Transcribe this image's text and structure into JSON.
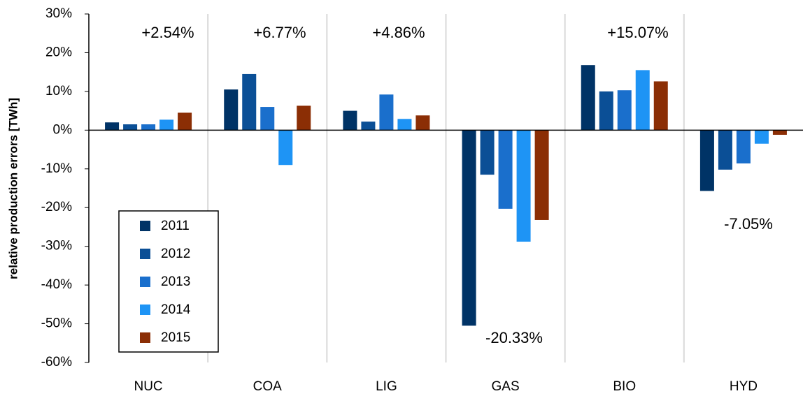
{
  "chart_data": {
    "type": "bar",
    "ylabel": "relative production errors [TWh]",
    "categories": [
      "NUC",
      "COA",
      "LIG",
      "GAS",
      "BIO",
      "HYD"
    ],
    "series": [
      {
        "name": "2011",
        "color": "#003366",
        "values": [
          2.0,
          10.5,
          5.0,
          -50.5,
          16.8,
          -15.7
        ]
      },
      {
        "name": "2012",
        "color": "#0b4f96",
        "values": [
          1.5,
          14.5,
          2.2,
          -11.5,
          10.0,
          -10.2
        ]
      },
      {
        "name": "2013",
        "color": "#1a6fcc",
        "values": [
          1.5,
          6.0,
          9.2,
          -20.3,
          10.3,
          -8.6
        ]
      },
      {
        "name": "2014",
        "color": "#1e94f5",
        "values": [
          2.7,
          -9.0,
          2.9,
          -28.8,
          15.5,
          -3.5
        ]
      },
      {
        "name": "2015",
        "color": "#8b2e05",
        "values": [
          4.5,
          6.3,
          3.8,
          -23.2,
          12.6,
          -1.2
        ]
      }
    ],
    "annotations": [
      "+2.54%",
      "+6.77%",
      "+4.86%",
      "-20.33%",
      "+15.07%",
      "-7.05%"
    ],
    "ylim": [
      -60,
      30
    ],
    "yticks": [
      {
        "value": -60,
        "label": "-60%"
      },
      {
        "value": -50,
        "label": "-50%"
      },
      {
        "value": -40,
        "label": "-40%"
      },
      {
        "value": -30,
        "label": "-30%"
      },
      {
        "value": -20,
        "label": "-20%"
      },
      {
        "value": -10,
        "label": "-10%"
      },
      {
        "value": 0,
        "label": "0%"
      },
      {
        "value": 10,
        "label": "10%"
      },
      {
        "value": 20,
        "label": "20%"
      },
      {
        "value": 30,
        "label": "30%"
      }
    ],
    "legend": "lower left"
  }
}
